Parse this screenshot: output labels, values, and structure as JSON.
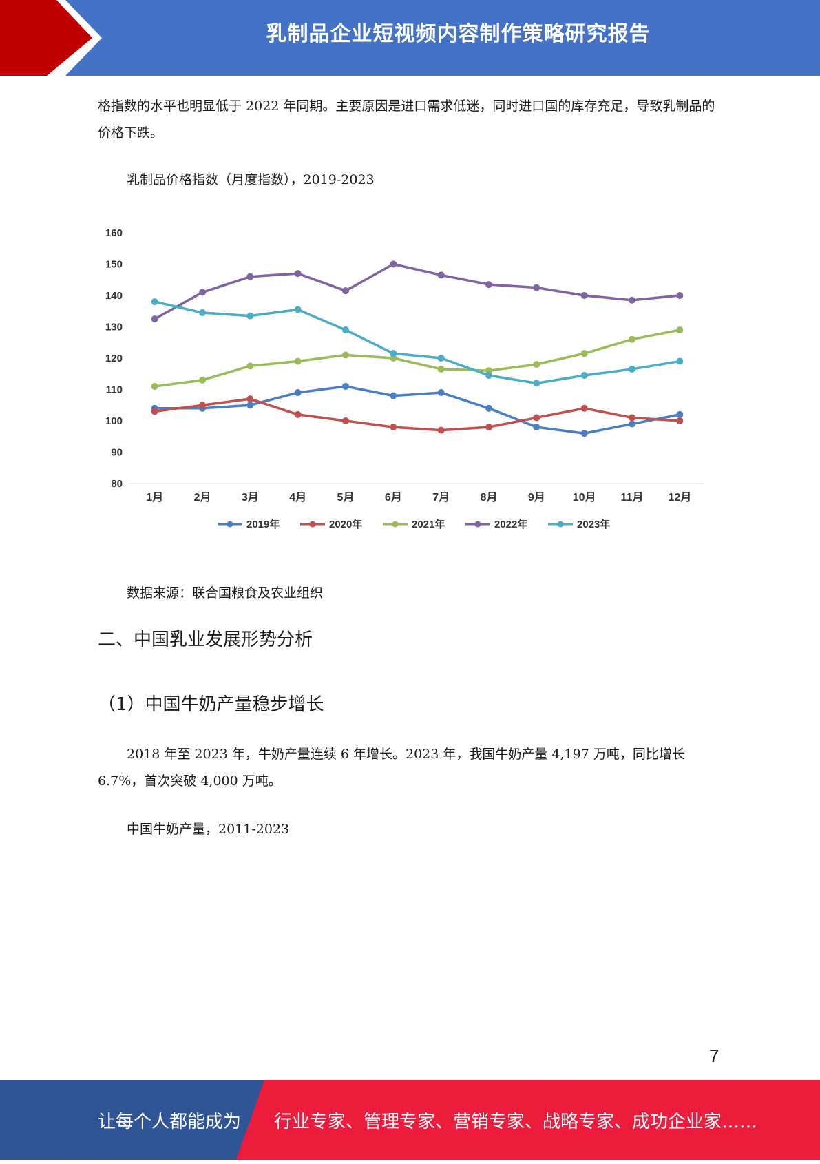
{
  "header": {
    "title": "乳制品企业短视频内容制作策略研究报告",
    "accent_red": "#c00000",
    "bar_blue": "#4472c4"
  },
  "intro_paragraph": "格指数的水平也明显低于 2022 年同期。主要原因是进口需求低迷，同时进口国的库存充足，导致乳制品的价格下跌。",
  "chart_caption": "乳制品价格指数（月度指数），2019-2023",
  "chart_data": {
    "type": "line",
    "title": "",
    "xlabel": "",
    "ylabel": "",
    "categories": [
      "1月",
      "2月",
      "3月",
      "4月",
      "5月",
      "6月",
      "7月",
      "8月",
      "9月",
      "10月",
      "11月",
      "12月"
    ],
    "ylim": [
      80,
      160
    ],
    "yticks": [
      80,
      90,
      100,
      110,
      120,
      130,
      140,
      150,
      160
    ],
    "grid": false,
    "legend_position": "bottom",
    "series": [
      {
        "name": "2019年",
        "color": "#4a7ec1",
        "values": [
          104,
          104,
          105,
          109,
          111,
          108,
          109,
          104,
          98,
          96,
          99,
          102
        ]
      },
      {
        "name": "2020年",
        "color": "#c0504d",
        "values": [
          103,
          105,
          107,
          102,
          100,
          98,
          97,
          98,
          101,
          104,
          101,
          100
        ]
      },
      {
        "name": "2021年",
        "color": "#9bbb59",
        "values": [
          111,
          113,
          117.5,
          119,
          121,
          120,
          116.5,
          116,
          118,
          121.5,
          126,
          129
        ]
      },
      {
        "name": "2022年",
        "color": "#8064a2",
        "values": [
          132.5,
          141,
          146,
          147,
          141.5,
          150,
          146.5,
          143.5,
          142.5,
          140,
          138.5,
          140
        ]
      },
      {
        "name": "2023年",
        "color": "#4bacc6",
        "values": [
          138,
          134.5,
          133.5,
          135.5,
          129,
          121.5,
          120,
          114.5,
          112,
          114.5,
          116.5,
          119
        ]
      }
    ]
  },
  "source_note": "数据来源：联合国粮食及农业组织",
  "section_heading": "二、中国乳业发展形势分析",
  "subsection_heading": "（1）中国牛奶产量稳步增长",
  "body_paragraph": "2018 年至 2023 年，牛奶产量连续 6 年增长。2023 年，我国牛奶产量 4,197 万吨，同比增长 6.7%，首次突破 4,000 万吨。",
  "second_caption": "中国牛奶产量，2011-2023",
  "page_number": "7",
  "footer": {
    "left_text": "让每个人都能成为",
    "right_text": "行业专家、管理专家、营销专家、战略专家、成功企业家……",
    "left_color": "#2f5597",
    "right_color": "#ee1c3c"
  }
}
